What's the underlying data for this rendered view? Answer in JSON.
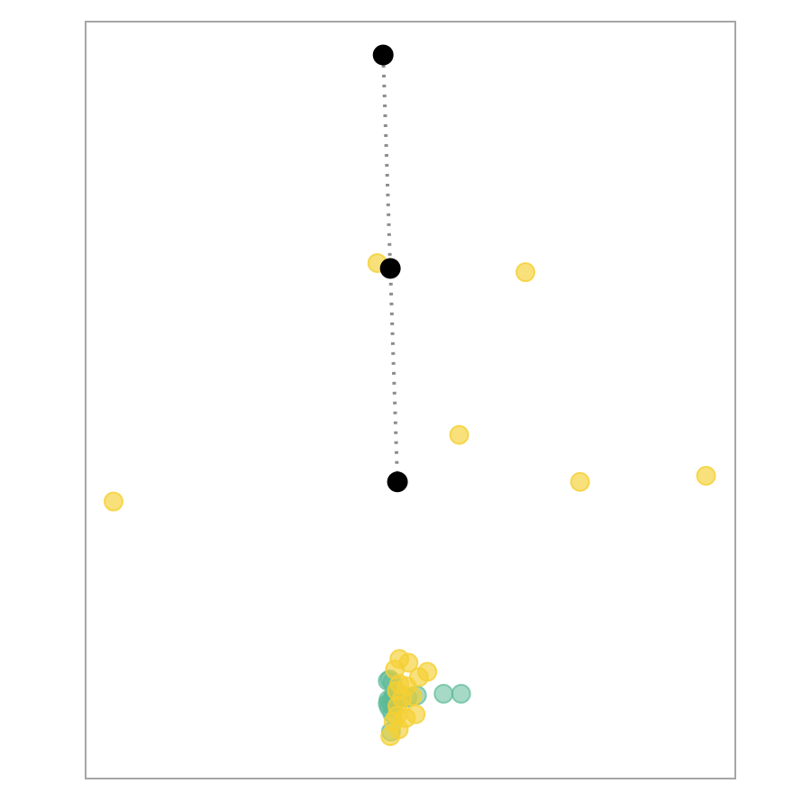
{
  "chart_data": {
    "type": "scatter",
    "title": "",
    "xlabel": "",
    "ylabel": "",
    "grid": false,
    "xlim": [
      0,
      100
    ],
    "ylim": [
      0,
      100
    ],
    "colors": {
      "frame": "#a6a6a6",
      "yellow": "#f5d033",
      "teal": "#5cba98",
      "path_points": "#000000",
      "path_line": "#8c8c8c"
    },
    "series": [
      {
        "color_key": "teal",
        "fill_opacity": 0.55,
        "points": [
          {
            "x": 46.5,
            "y": 12.9
          },
          {
            "x": 46.8,
            "y": 13.1
          },
          {
            "x": 47.2,
            "y": 12.7
          },
          {
            "x": 46.6,
            "y": 10.4
          },
          {
            "x": 46.9,
            "y": 10.2
          },
          {
            "x": 47.3,
            "y": 10.6
          },
          {
            "x": 47.0,
            "y": 9.8
          },
          {
            "x": 46.7,
            "y": 9.4
          },
          {
            "x": 47.4,
            "y": 11.0
          },
          {
            "x": 47.8,
            "y": 10.3
          },
          {
            "x": 48.6,
            "y": 10.8
          },
          {
            "x": 49.5,
            "y": 10.7
          },
          {
            "x": 51.0,
            "y": 11.0
          },
          {
            "x": 55.1,
            "y": 11.2
          },
          {
            "x": 57.8,
            "y": 11.2
          },
          {
            "x": 47.2,
            "y": 8.6
          },
          {
            "x": 47.0,
            "y": 6.2
          },
          {
            "x": 46.5,
            "y": 9.9
          }
        ]
      },
      {
        "color_key": "yellow",
        "fill_opacity": 0.65,
        "points": [
          {
            "x": 44.9,
            "y": 68.1
          },
          {
            "x": 67.7,
            "y": 66.9
          },
          {
            "x": 57.5,
            "y": 45.4
          },
          {
            "x": 76.1,
            "y": 39.2
          },
          {
            "x": 95.5,
            "y": 40.0
          },
          {
            "x": 4.3,
            "y": 36.6
          },
          {
            "x": 48.3,
            "y": 15.8
          },
          {
            "x": 49.7,
            "y": 15.3
          },
          {
            "x": 47.6,
            "y": 14.4
          },
          {
            "x": 52.6,
            "y": 14.1
          },
          {
            "x": 51.3,
            "y": 13.4
          },
          {
            "x": 48.3,
            "y": 12.5
          },
          {
            "x": 49.4,
            "y": 12.2
          },
          {
            "x": 47.9,
            "y": 11.6
          },
          {
            "x": 48.7,
            "y": 10.6
          },
          {
            "x": 50.3,
            "y": 10.9
          },
          {
            "x": 48.0,
            "y": 9.6
          },
          {
            "x": 50.8,
            "y": 8.5
          },
          {
            "x": 47.9,
            "y": 8.3
          },
          {
            "x": 49.3,
            "y": 8.0
          },
          {
            "x": 47.4,
            "y": 7.5
          },
          {
            "x": 48.2,
            "y": 6.5
          },
          {
            "x": 46.9,
            "y": 5.6
          }
        ]
      }
    ],
    "path": {
      "line_style": "dotted",
      "points": [
        {
          "x": 45.8,
          "y": 95.6
        },
        {
          "x": 46.9,
          "y": 67.4
        },
        {
          "x": 48.0,
          "y": 39.2
        }
      ]
    }
  }
}
